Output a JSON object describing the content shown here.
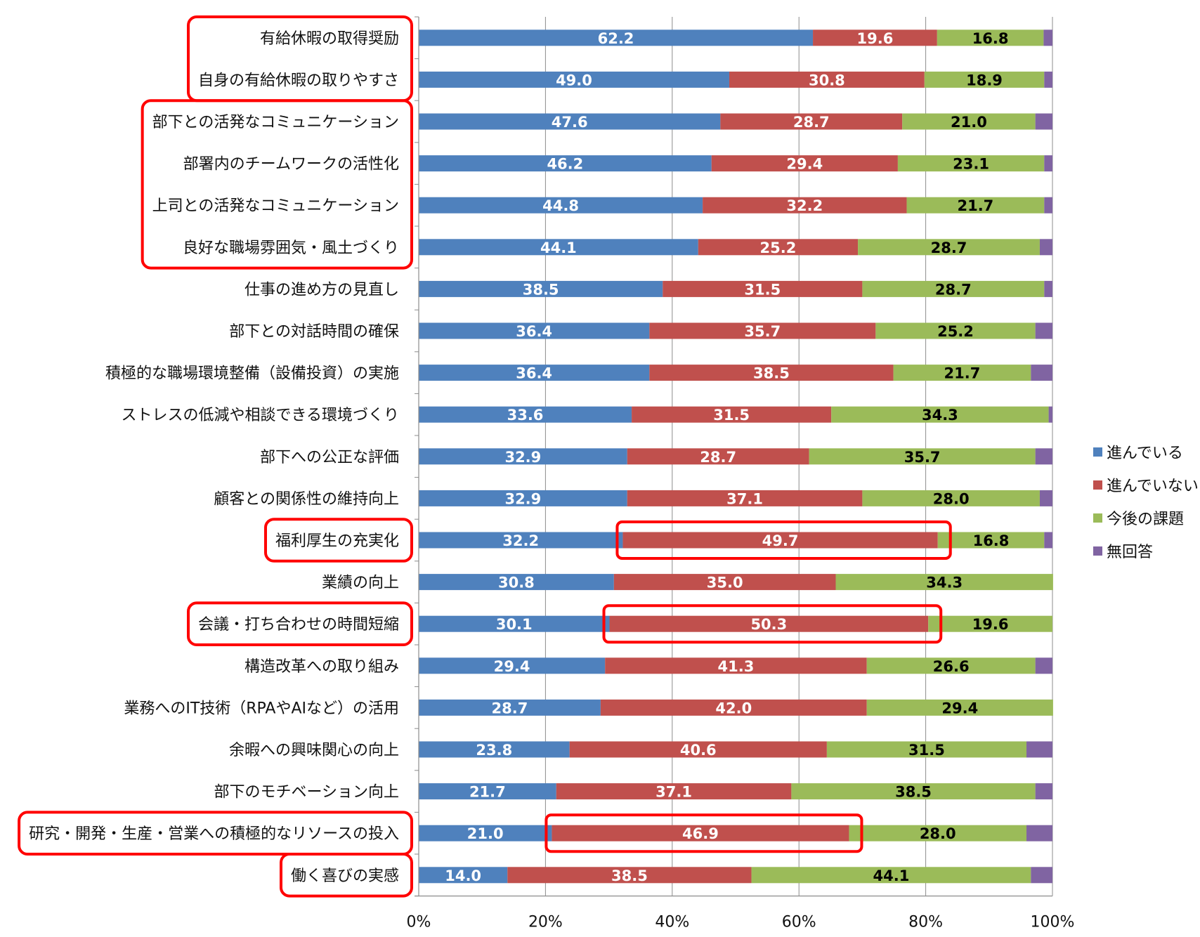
{
  "chart_data": {
    "type": "bar",
    "orientation": "horizontal",
    "stacked": true,
    "categories": [
      "有給休暇の取得奨励",
      "自身の有給休暇の取りやすさ",
      "部下との活発なコミュニケーション",
      "部署内のチームワークの活性化",
      "上司との活発なコミュニケーション",
      "良好な職場雰囲気・風土づくり",
      "仕事の進め方の見直し",
      "部下との対話時間の確保",
      "積極的な職場環境整備（設備投資）の実施",
      "ストレスの低減や相談できる環境づくり",
      "部下への公正な評価",
      "顧客との関係性の維持向上",
      "福利厚生の充実化",
      "業績の向上",
      "会議・打ち合わせの時間短縮",
      "構造改革への取り組み",
      "業務へのIT技術（RPAやAIなど）の活用",
      "余暇への興味関心の向上",
      "部下のモチベーション向上",
      "研究・開発・生産・営業への積極的なリソースの投入",
      "働く喜びの実感"
    ],
    "series": [
      {
        "name": "進んでいる",
        "color": "#4F81BD",
        "values": [
          62.2,
          49.0,
          47.6,
          46.2,
          44.8,
          44.1,
          38.5,
          36.4,
          36.4,
          33.6,
          32.9,
          32.9,
          32.2,
          30.8,
          30.1,
          29.4,
          28.7,
          23.8,
          21.7,
          21.0,
          14.0
        ]
      },
      {
        "name": "進んでいない",
        "color": "#C0504D",
        "values": [
          19.6,
          30.8,
          28.7,
          29.4,
          32.2,
          25.2,
          31.5,
          35.7,
          38.5,
          31.5,
          28.7,
          37.1,
          49.7,
          35.0,
          50.3,
          41.3,
          42.0,
          40.6,
          37.1,
          46.9,
          38.5
        ]
      },
      {
        "name": "今後の課題",
        "color": "#9BBB59",
        "values": [
          16.8,
          18.9,
          21.0,
          23.1,
          21.7,
          28.7,
          28.7,
          25.2,
          21.7,
          34.3,
          35.7,
          28.0,
          16.8,
          34.3,
          19.6,
          26.6,
          29.4,
          31.5,
          38.5,
          28.0,
          44.1
        ]
      },
      {
        "name": "無回答",
        "color": "#8064A2",
        "values": [
          1.4,
          1.3,
          2.7,
          1.3,
          1.3,
          2.0,
          1.3,
          2.7,
          3.4,
          0.6,
          2.7,
          2.0,
          1.3,
          0.0,
          0.0,
          2.7,
          0.0,
          4.1,
          2.7,
          4.1,
          3.4
        ]
      }
    ],
    "value_label_colors": [
      "#FFFFFF",
      "#FFFFFF",
      "#000000",
      null
    ],
    "xlim": [
      0,
      100
    ],
    "xticks": [
      "0%",
      "20%",
      "40%",
      "60%",
      "80%",
      "100%"
    ],
    "grid": true,
    "legend_position": "right",
    "highlight_color": "#FF0000",
    "highlighted_label_groups": [
      [
        0,
        1
      ],
      [
        2,
        5
      ],
      [
        12,
        12
      ],
      [
        14,
        14
      ],
      [
        19,
        19
      ],
      [
        20,
        20
      ]
    ],
    "highlighted_segments": [
      {
        "row": 12,
        "series": 1
      },
      {
        "row": 14,
        "series": 1
      },
      {
        "row": 19,
        "series": 1
      }
    ]
  }
}
